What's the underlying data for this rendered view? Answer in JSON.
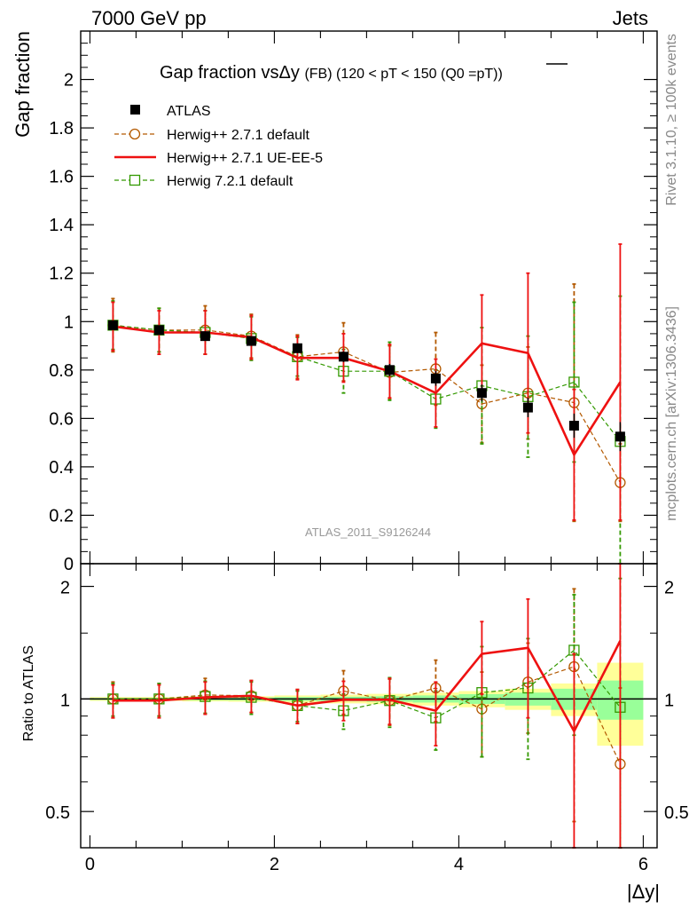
{
  "header": {
    "left": "7000 GeV pp",
    "right": "Jets",
    "side_top": "Rivet 3.1.10, ≥ 100k events",
    "side_bottom": "mcplots.cern.ch [arXiv:1306.3436]"
  },
  "chart_data": [
    {
      "type": "line",
      "panel": "main",
      "title": "Gap fraction vsΔy",
      "title_sub": "(FB) (120 < pT < 150 (Q0 = pT))",
      "title_tail": "(FB) (120 < pT < 150 (Q0 =",
      "title_pt": "pT",
      "title_close": "))",
      "ylabel": "Gap fraction",
      "xlabel": "|Δy|",
      "watermark": "ATLAS_2011_S9126244",
      "xlim": [
        -0.1,
        6.15
      ],
      "ylim": [
        0,
        2.2
      ],
      "yticks": [
        "0",
        "0.2",
        "0.4",
        "0.6",
        "0.8",
        "1",
        "1.2",
        "1.4",
        "1.6",
        "1.8",
        "2"
      ],
      "xticks": [
        "0",
        "2",
        "4",
        "6"
      ],
      "x": [
        0.25,
        0.75,
        1.25,
        1.75,
        2.25,
        2.75,
        3.25,
        3.75,
        4.25,
        4.75,
        5.25,
        5.75
      ],
      "series": [
        {
          "name": "ATLAS",
          "style": "data",
          "color": "#000000",
          "values": [
            0.985,
            0.965,
            0.94,
            0.92,
            0.89,
            0.855,
            0.8,
            0.765,
            0.705,
            0.645,
            0.57,
            0.525
          ],
          "err": [
            0.012,
            0.012,
            0.014,
            0.015,
            0.02,
            0.022,
            0.025,
            0.03,
            0.035,
            0.04,
            0.05,
            0.06
          ]
        },
        {
          "name": "Herwig++ 2.7.1 default",
          "style": "dashed-circle",
          "color": "#b35900",
          "values": [
            0.985,
            0.965,
            0.965,
            0.94,
            0.855,
            0.875,
            0.79,
            0.805,
            0.66,
            0.705,
            0.665,
            0.335
          ],
          "err": [
            0.11,
            0.09,
            0.1,
            0.09,
            0.09,
            0.12,
            0.11,
            0.15,
            0.16,
            0.19,
            0.49,
            0.16
          ]
        },
        {
          "name": "Herwig++ 2.7.1 UE-EE-5",
          "style": "solid",
          "color": "#ee1111",
          "values": [
            0.98,
            0.955,
            0.955,
            0.935,
            0.85,
            0.85,
            0.795,
            0.705,
            0.91,
            0.87,
            0.45,
            0.75
          ],
          "err": [
            0.1,
            0.09,
            0.09,
            0.09,
            0.09,
            0.1,
            0.11,
            0.14,
            0.2,
            0.33,
            0.27,
            0.57
          ]
        },
        {
          "name": "Herwig 7.2.1 default",
          "style": "dashed-square",
          "color": "#339900",
          "values": [
            0.985,
            0.965,
            0.955,
            0.93,
            0.855,
            0.795,
            0.795,
            0.68,
            0.735,
            0.69,
            0.75,
            0.505
          ],
          "err": [
            0.1,
            0.09,
            0.09,
            0.09,
            0.08,
            0.09,
            0.12,
            0.12,
            0.24,
            0.25,
            0.33,
            0.6
          ]
        }
      ]
    },
    {
      "type": "line",
      "panel": "ratio",
      "ylabel": "Ratio to ATLAS",
      "ylim": [
        0.4,
        2.3
      ],
      "yscale": "log",
      "yticks": [
        "0.5",
        "1",
        "2"
      ],
      "x": [
        0.25,
        0.75,
        1.25,
        1.75,
        2.25,
        2.75,
        3.25,
        3.75,
        4.25,
        4.75,
        5.25,
        5.75
      ],
      "band_yellow": [
        0.012,
        0.012,
        0.015,
        0.017,
        0.022,
        0.027,
        0.032,
        0.04,
        0.05,
        0.065,
        0.1,
        0.25
      ],
      "band_green": [
        0.006,
        0.006,
        0.008,
        0.009,
        0.012,
        0.014,
        0.017,
        0.022,
        0.03,
        0.04,
        0.065,
        0.12
      ],
      "series": [
        {
          "name": "Herwig++ 2.7.1 default",
          "values": [
            1.0,
            1.0,
            1.025,
            1.02,
            0.96,
            1.05,
            0.99,
            1.07,
            0.94,
            1.11,
            1.22,
            0.67
          ],
          "err": [
            0.11,
            0.1,
            0.11,
            0.1,
            0.1,
            0.14,
            0.14,
            0.2,
            0.24,
            0.3,
            0.75,
            0.4
          ]
        },
        {
          "name": "Herwig++ 2.7.1 UE-EE-5",
          "values": [
            0.99,
            0.99,
            1.01,
            1.02,
            0.96,
            0.995,
            0.995,
            0.93,
            1.32,
            1.37,
            0.82,
            1.43
          ],
          "err": [
            0.1,
            0.1,
            0.1,
            0.1,
            0.1,
            0.12,
            0.14,
            0.18,
            0.29,
            0.48,
            0.5,
            1.05
          ]
        },
        {
          "name": "Herwig 7.2.1 default",
          "values": [
            1.0,
            1.0,
            1.015,
            1.01,
            0.96,
            0.93,
            0.99,
            0.89,
            1.04,
            1.07,
            1.35,
            0.95
          ],
          "err": [
            0.1,
            0.1,
            0.1,
            0.1,
            0.09,
            0.1,
            0.15,
            0.16,
            0.34,
            0.38,
            0.55,
            1.15
          ]
        }
      ]
    }
  ]
}
